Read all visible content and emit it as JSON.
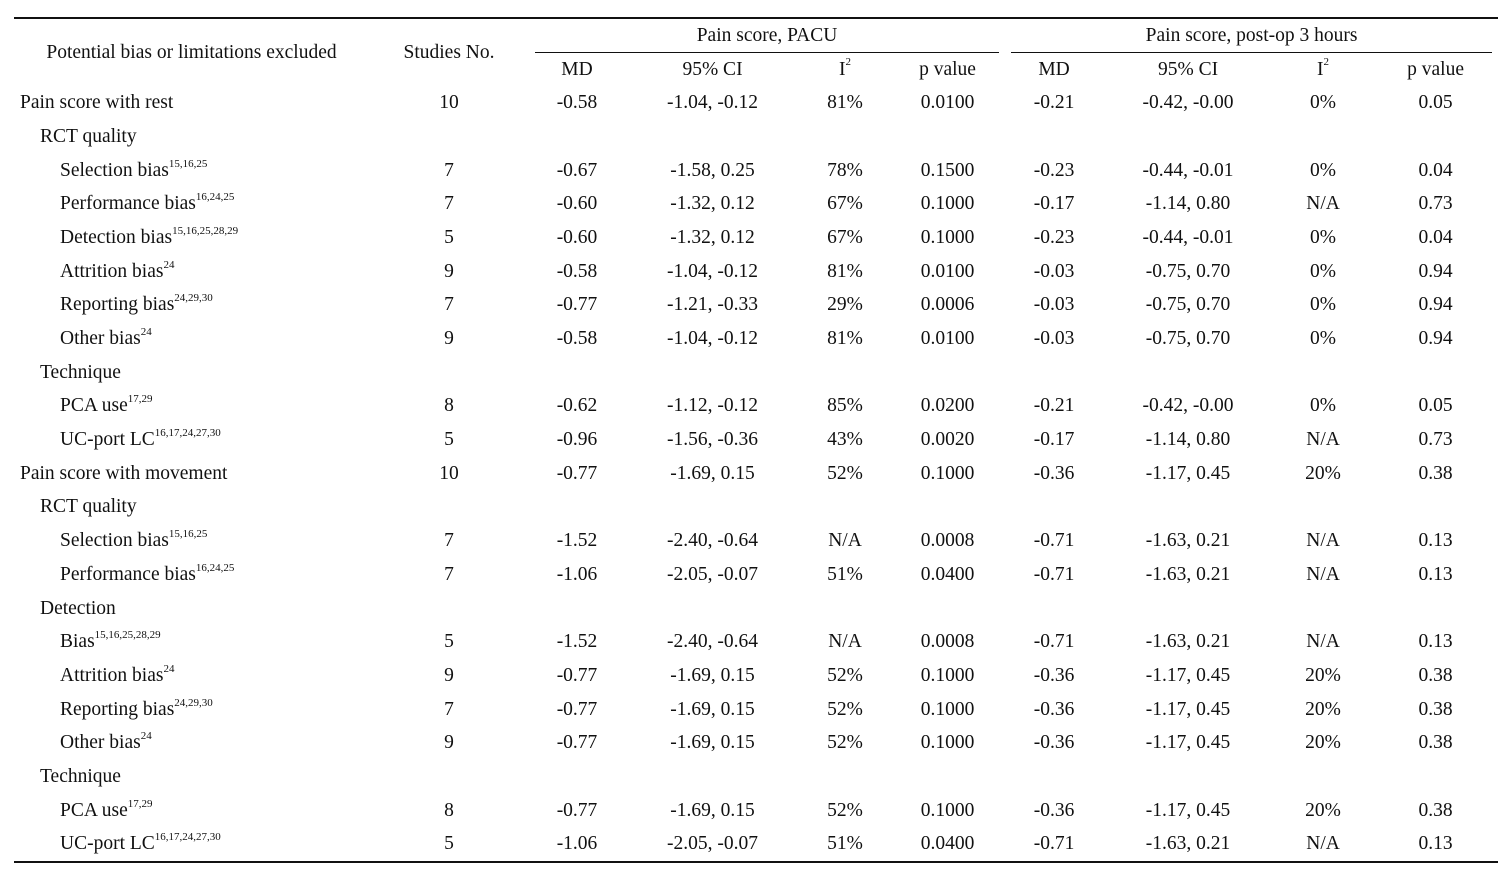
{
  "header": {
    "col_bias": "Potential bias or limitations excluded",
    "col_studies": "Studies No.",
    "group_pacu": "Pain score, PACU",
    "group_3h": "Pain score, post-op 3 hours",
    "md": "MD",
    "ci": "95% CI",
    "i2_base": "I",
    "i2_sup": "2",
    "pvalue": "p value"
  },
  "rows": [
    {
      "level": 0,
      "label": "Pain score with rest",
      "sup": "",
      "n": "10",
      "md1": "-0.58",
      "ci1": "-1.04, -0.12",
      "i21": "81%",
      "p1": "0.0100",
      "md2": "-0.21",
      "ci2": "-0.42, -0.00",
      "i22": "0%",
      "p2": "0.05"
    },
    {
      "level": 1,
      "label": "RCT quality",
      "sup": "",
      "n": "",
      "md1": "",
      "ci1": "",
      "i21": "",
      "p1": "",
      "md2": "",
      "ci2": "",
      "i22": "",
      "p2": ""
    },
    {
      "level": 2,
      "label": "Selection bias",
      "sup": "15,16,25",
      "n": "7",
      "md1": "-0.67",
      "ci1": "-1.58, 0.25",
      "i21": "78%",
      "p1": "0.1500",
      "md2": "-0.23",
      "ci2": "-0.44, -0.01",
      "i22": "0%",
      "p2": "0.04"
    },
    {
      "level": 2,
      "label": "Performance bias",
      "sup": "16,24,25",
      "n": "7",
      "md1": "-0.60",
      "ci1": "-1.32, 0.12",
      "i21": "67%",
      "p1": "0.1000",
      "md2": "-0.17",
      "ci2": "-1.14, 0.80",
      "i22": "N/A",
      "p2": "0.73"
    },
    {
      "level": 2,
      "label": "Detection bias",
      "sup": "15,16,25,28,29",
      "n": "5",
      "md1": "-0.60",
      "ci1": "-1.32, 0.12",
      "i21": "67%",
      "p1": "0.1000",
      "md2": "-0.23",
      "ci2": "-0.44, -0.01",
      "i22": "0%",
      "p2": "0.04"
    },
    {
      "level": 2,
      "label": "Attrition bias",
      "sup": "24",
      "n": "9",
      "md1": "-0.58",
      "ci1": "-1.04, -0.12",
      "i21": "81%",
      "p1": "0.0100",
      "md2": "-0.03",
      "ci2": "-0.75, 0.70",
      "i22": "0%",
      "p2": "0.94"
    },
    {
      "level": 2,
      "label": "Reporting bias",
      "sup": "24,29,30",
      "n": "7",
      "md1": "-0.77",
      "ci1": "-1.21, -0.33",
      "i21": "29%",
      "p1": "0.0006",
      "md2": "-0.03",
      "ci2": "-0.75, 0.70",
      "i22": "0%",
      "p2": "0.94"
    },
    {
      "level": 2,
      "label": "Other bias",
      "sup": "24",
      "n": "9",
      "md1": "-0.58",
      "ci1": "-1.04, -0.12",
      "i21": "81%",
      "p1": "0.0100",
      "md2": "-0.03",
      "ci2": "-0.75, 0.70",
      "i22": "0%",
      "p2": "0.94"
    },
    {
      "level": 1,
      "label": "Technique",
      "sup": "",
      "n": "",
      "md1": "",
      "ci1": "",
      "i21": "",
      "p1": "",
      "md2": "",
      "ci2": "",
      "i22": "",
      "p2": ""
    },
    {
      "level": 2,
      "label": "PCA use",
      "sup": "17,29",
      "n": "8",
      "md1": "-0.62",
      "ci1": "-1.12, -0.12",
      "i21": "85%",
      "p1": "0.0200",
      "md2": "-0.21",
      "ci2": "-0.42, -0.00",
      "i22": "0%",
      "p2": "0.05"
    },
    {
      "level": 2,
      "label": "UC-port LC",
      "sup": "16,17,24,27,30",
      "n": "5",
      "md1": "-0.96",
      "ci1": "-1.56, -0.36",
      "i21": "43%",
      "p1": "0.0020",
      "md2": "-0.17",
      "ci2": "-1.14, 0.80",
      "i22": "N/A",
      "p2": "0.73"
    },
    {
      "level": 0,
      "label": "Pain score with movement",
      "sup": "",
      "n": "10",
      "md1": "-0.77",
      "ci1": "-1.69, 0.15",
      "i21": "52%",
      "p1": "0.1000",
      "md2": "-0.36",
      "ci2": "-1.17, 0.45",
      "i22": "20%",
      "p2": "0.38"
    },
    {
      "level": 1,
      "label": "RCT quality",
      "sup": "",
      "n": "",
      "md1": "",
      "ci1": "",
      "i21": "",
      "p1": "",
      "md2": "",
      "ci2": "",
      "i22": "",
      "p2": ""
    },
    {
      "level": 2,
      "label": "Selection bias",
      "sup": "15,16,25",
      "n": "7",
      "md1": "-1.52",
      "ci1": "-2.40, -0.64",
      "i21": "N/A",
      "p1": "0.0008",
      "md2": "-0.71",
      "ci2": "-1.63, 0.21",
      "i22": "N/A",
      "p2": "0.13"
    },
    {
      "level": 2,
      "label": "Performance bias",
      "sup": "16,24,25",
      "n": "7",
      "md1": "-1.06",
      "ci1": "-2.05, -0.07",
      "i21": "51%",
      "p1": "0.0400",
      "md2": "-0.71",
      "ci2": "-1.63, 0.21",
      "i22": "N/A",
      "p2": "0.13"
    },
    {
      "level": 1,
      "label": "Detection",
      "sup": "",
      "n": "",
      "md1": "",
      "ci1": "",
      "i21": "",
      "p1": "",
      "md2": "",
      "ci2": "",
      "i22": "",
      "p2": ""
    },
    {
      "level": 2,
      "label": "Bias",
      "sup": "15,16,25,28,29",
      "n": "5",
      "md1": "-1.52",
      "ci1": "-2.40, -0.64",
      "i21": "N/A",
      "p1": "0.0008",
      "md2": "-0.71",
      "ci2": "-1.63, 0.21",
      "i22": "N/A",
      "p2": "0.13"
    },
    {
      "level": 2,
      "label": "Attrition bias",
      "sup": "24",
      "n": "9",
      "md1": "-0.77",
      "ci1": "-1.69, 0.15",
      "i21": "52%",
      "p1": "0.1000",
      "md2": "-0.36",
      "ci2": "-1.17, 0.45",
      "i22": "20%",
      "p2": "0.38"
    },
    {
      "level": 2,
      "label": "Reporting bias",
      "sup": "24,29,30",
      "n": "7",
      "md1": "-0.77",
      "ci1": "-1.69, 0.15",
      "i21": "52%",
      "p1": "0.1000",
      "md2": "-0.36",
      "ci2": "-1.17, 0.45",
      "i22": "20%",
      "p2": "0.38"
    },
    {
      "level": 2,
      "label": "Other bias",
      "sup": "24",
      "n": "9",
      "md1": "-0.77",
      "ci1": "-1.69, 0.15",
      "i21": "52%",
      "p1": "0.1000",
      "md2": "-0.36",
      "ci2": "-1.17, 0.45",
      "i22": "20%",
      "p2": "0.38"
    },
    {
      "level": 1,
      "label": "Technique",
      "sup": "",
      "n": "",
      "md1": "",
      "ci1": "",
      "i21": "",
      "p1": "",
      "md2": "",
      "ci2": "",
      "i22": "",
      "p2": ""
    },
    {
      "level": 2,
      "label": "PCA use",
      "sup": "17,29",
      "n": "8",
      "md1": "-0.77",
      "ci1": "-1.69, 0.15",
      "i21": "52%",
      "p1": "0.1000",
      "md2": "-0.36",
      "ci2": "-1.17, 0.45",
      "i22": "20%",
      "p2": "0.38"
    },
    {
      "level": 2,
      "label": "UC-port LC",
      "sup": "16,17,24,27,30",
      "n": "5",
      "md1": "-1.06",
      "ci1": "-2.05, -0.07",
      "i21": "51%",
      "p1": "0.0400",
      "md2": "-0.71",
      "ci2": "-1.63, 0.21",
      "i22": "N/A",
      "p2": "0.13"
    }
  ]
}
